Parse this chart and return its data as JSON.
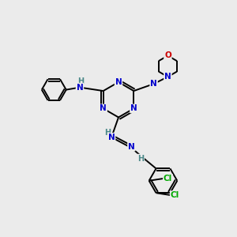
{
  "bg_color": "#ebebeb",
  "atom_colors": {
    "N": "#0000cc",
    "O": "#cc0000",
    "C": "#000000",
    "H": "#4a8888",
    "Cl": "#00aa00"
  },
  "bond_color": "#000000",
  "bond_width": 1.4,
  "figsize": [
    3.0,
    3.0
  ],
  "dpi": 100,
  "xlim": [
    0,
    10
  ],
  "ylim": [
    0,
    10
  ]
}
